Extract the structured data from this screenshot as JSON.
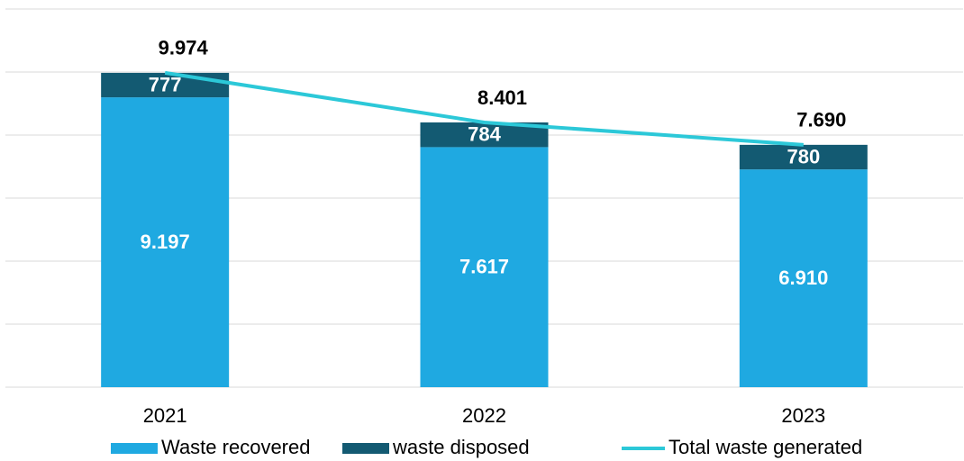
{
  "chart_data": {
    "type": "bar_line",
    "categories": [
      "2021",
      "2022",
      "2023"
    ],
    "series": [
      {
        "name": "Waste recovered",
        "color": "#1fa9e1",
        "kind": "stacked-bar",
        "values": [
          9197,
          7617,
          6910
        ],
        "value_labels": [
          "9.197",
          "7.617",
          "6.910"
        ]
      },
      {
        "name": "waste disposed",
        "color": "#135a72",
        "kind": "stacked-bar",
        "values": [
          777,
          784,
          780
        ]
      },
      {
        "name": "Total waste generated",
        "color": "#2cc8d8",
        "kind": "line",
        "values": [
          9974,
          8401,
          7690
        ],
        "value_labels": [
          "9.974",
          "8.401",
          "7.690"
        ]
      }
    ],
    "ylim": [
      0,
      12000
    ],
    "yticks": [
      0,
      2000,
      4000,
      6000,
      8000,
      10000,
      12000
    ],
    "grid": true,
    "legend": "bottom"
  }
}
